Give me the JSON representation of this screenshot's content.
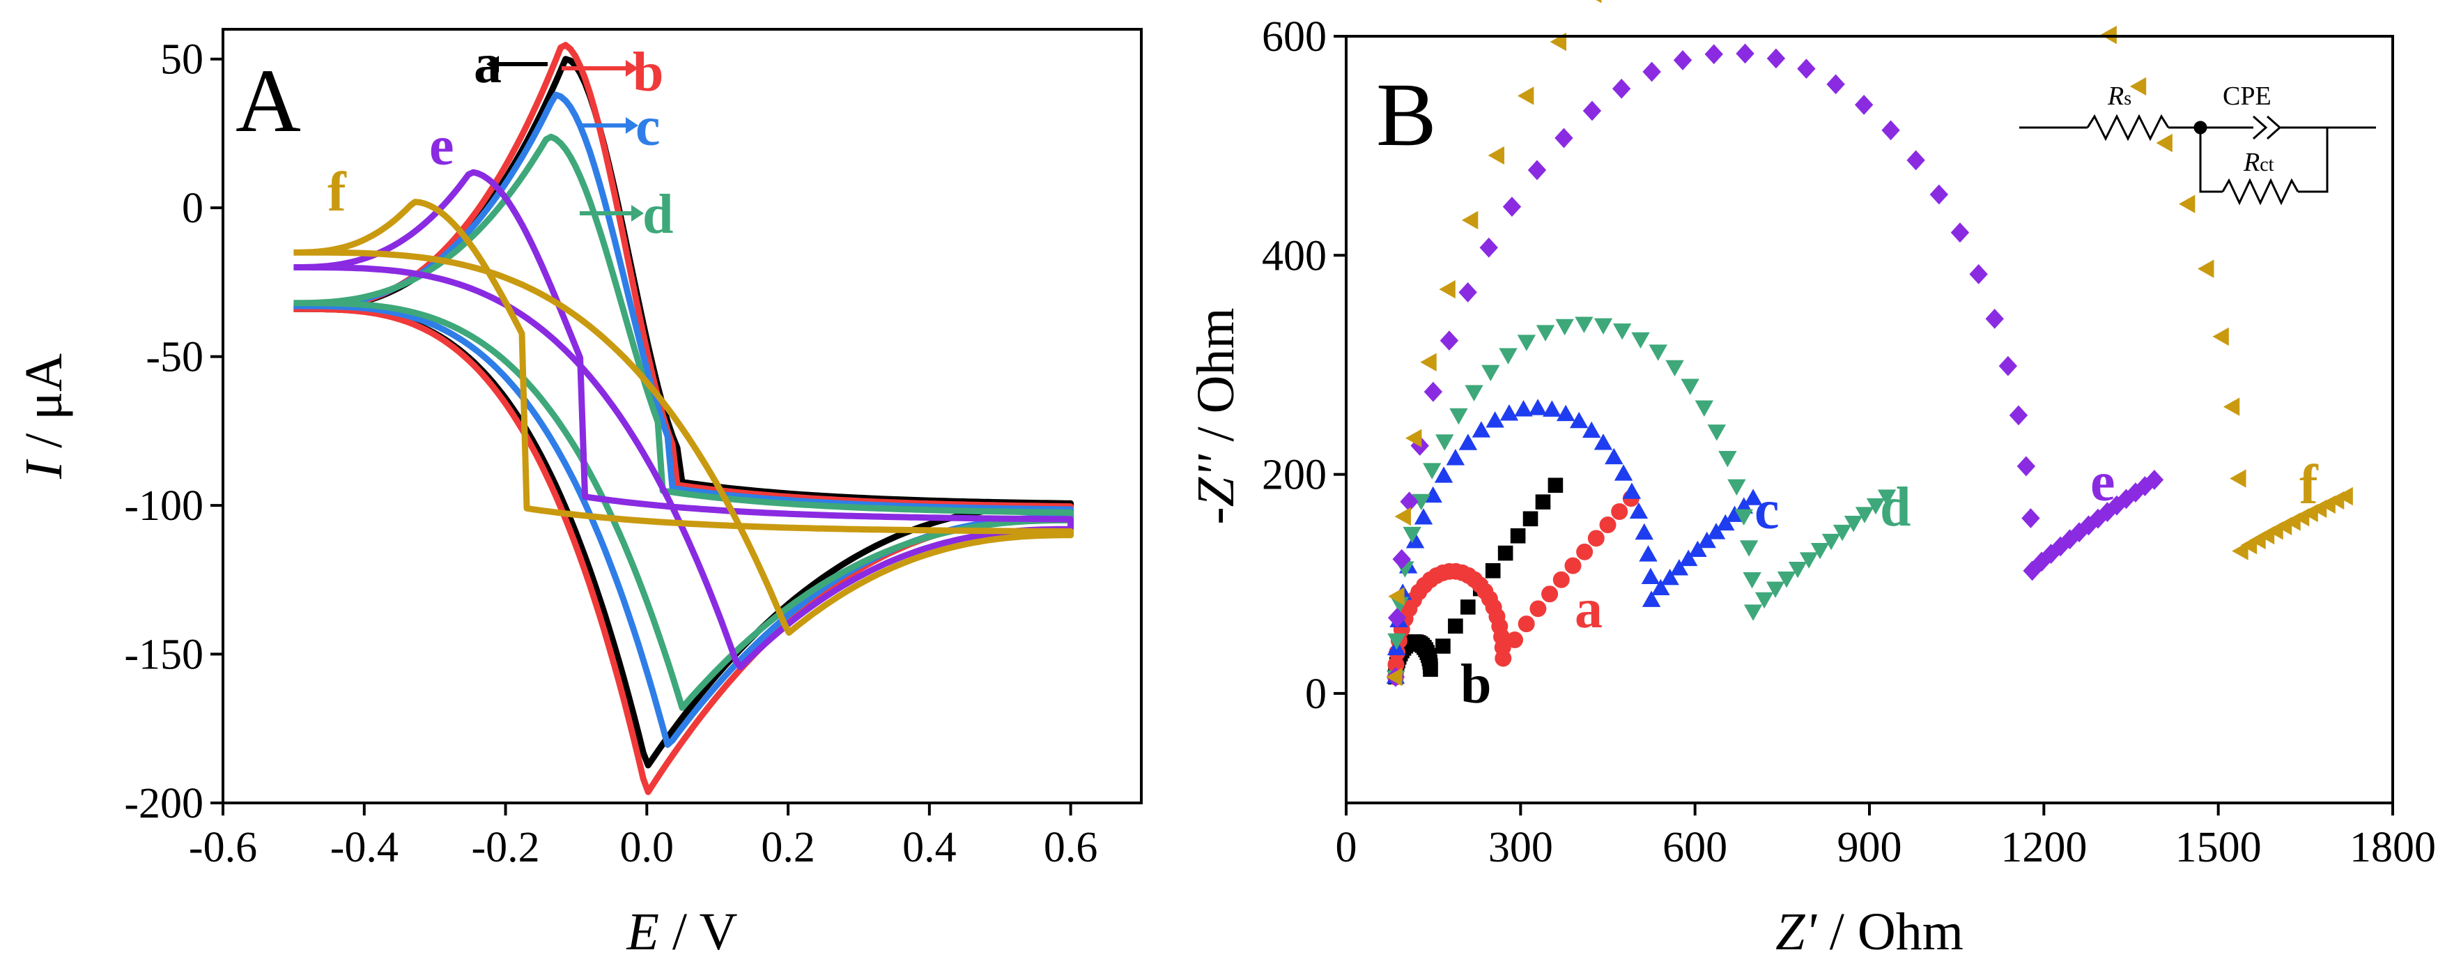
{
  "chart_data": [
    {
      "panel": "A",
      "type": "line",
      "title": "",
      "xlabel_symbol": "E",
      "xlabel_unit": " / V",
      "ylabel_symbol": "I",
      "ylabel_unit": " / μA",
      "xlim": [
        -0.6,
        0.7
      ],
      "ylim": [
        -200,
        60
      ],
      "xticks": [
        -0.6,
        -0.4,
        -0.2,
        0.0,
        0.2,
        0.4,
        0.6
      ],
      "xtick_labels": [
        "-0.6",
        "-0.4",
        "-0.2",
        "0.0",
        "0.2",
        "0.4",
        "0.6"
      ],
      "yticks": [
        50,
        0,
        -50,
        -100,
        -150,
        -200
      ],
      "ytick_labels": [
        "50",
        "0",
        "-50",
        "-100",
        "-150",
        "-200"
      ],
      "grid": false,
      "series": [
        {
          "name": "a",
          "color": "#000000",
          "arrow": "left",
          "Eox": -0.115,
          "Ipa": 50,
          "Ered": 0.0,
          "Ipc": -188,
          "start": -34,
          "end_upper": -100,
          "end_lower": -100
        },
        {
          "name": "b",
          "color": "#f03a3a",
          "arrow": "right",
          "Eox": -0.12,
          "Ipa": 55,
          "Ered": 0.0,
          "Ipc": -197,
          "start": -34,
          "end_upper": -101,
          "end_lower": -104
        },
        {
          "name": "c",
          "color": "#2f7ee8",
          "arrow": "right",
          "Eox": -0.13,
          "Ipa": 38,
          "Ered": 0.03,
          "Ipc": -181,
          "start": -33,
          "end_upper": -102,
          "end_lower": -104
        },
        {
          "name": "d",
          "color": "#3ea87a",
          "arrow": "right",
          "Eox": -0.14,
          "Ipa": 24,
          "Ered": 0.05,
          "Ipc": -168,
          "start": -32,
          "end_upper": -103,
          "end_lower": -105
        },
        {
          "name": "e",
          "color": "#8a2be2",
          "arrow": "none",
          "Eox": -0.25,
          "Ipa": 12,
          "Ered": 0.13,
          "Ipc": -155,
          "start": -20,
          "end_upper": -105,
          "end_lower": -108
        },
        {
          "name": "f",
          "color": "#c99a10",
          "arrow": "none",
          "Eox": -0.33,
          "Ipa": 2,
          "Ered": 0.2,
          "Ipc": -143,
          "start": -15,
          "end_upper": -109,
          "end_lower": -110
        }
      ]
    },
    {
      "panel": "B",
      "type": "scatter",
      "title": "",
      "xlabel_symbol": "Z'",
      "xlabel_unit": " / Ohm",
      "ylabel_symbol": "-Z''",
      "ylabel_unit": " / Ohm",
      "xlim": [
        0,
        1800
      ],
      "ylim": [
        -100,
        600
      ],
      "xticks": [
        0,
        300,
        600,
        900,
        1200,
        1500,
        1800
      ],
      "xtick_labels": [
        "0",
        "300",
        "600",
        "900",
        "1200",
        "1500",
        "1800"
      ],
      "yticks": [
        600,
        400,
        200,
        0
      ],
      "ytick_labels": [
        "600",
        "400",
        "200",
        "0"
      ],
      "grid": false,
      "circuit_labels": {
        "rs": "R",
        "rs_sub": "s",
        "cpe": "CPE",
        "rct": "R",
        "rct_sub": "ct"
      },
      "series": [
        {
          "name": "b",
          "color": "#000000",
          "marker": "square",
          "semicircle_from": 85,
          "semicircle_to": 145,
          "tail_start": [
            145,
            22
          ],
          "tail_end": [
            360,
            190
          ],
          "points": 36
        },
        {
          "name": "a",
          "color": "#f03a3a",
          "marker": "circle",
          "semicircle_from": 85,
          "semicircle_to": 270,
          "tail_start": [
            270,
            32
          ],
          "tail_end": [
            490,
            178
          ],
          "points": 38
        },
        {
          "name": "c",
          "color": "#1e3df0",
          "marker": "triangle-up",
          "semicircle_from": 85,
          "semicircle_to": 525,
          "tail_start": [
            525,
            85
          ],
          "tail_end": [
            700,
            178
          ],
          "points": 40
        },
        {
          "name": "d",
          "color": "#3ea87a",
          "marker": "triangle-down",
          "semicircle_from": 85,
          "semicircle_to": 700,
          "tail_start": [
            700,
            75
          ],
          "tail_end": [
            930,
            180
          ],
          "points": 42
        },
        {
          "name": "e",
          "color": "#8a2be2",
          "marker": "diamond",
          "semicircle_from": 85,
          "semicircle_to": 1180,
          "tail_start": [
            1180,
            112
          ],
          "tail_end": [
            1390,
            195
          ],
          "points": 46
        },
        {
          "name": "f",
          "color": "#c99a10",
          "marker": "triangle-left",
          "semicircle_from": 85,
          "semicircle_to": 1540,
          "tail_start": [
            1540,
            130
          ],
          "tail_end": [
            1720,
            180
          ],
          "points": 44
        }
      ]
    }
  ]
}
